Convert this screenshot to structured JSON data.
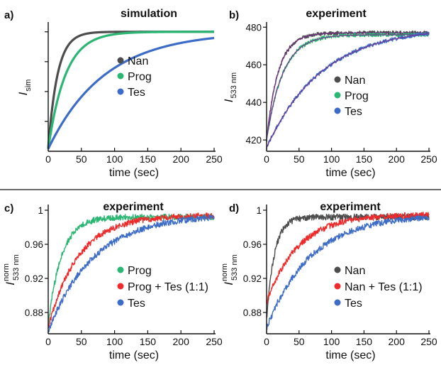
{
  "figure": {
    "colors": {
      "Nan": "#4d4d4d",
      "Prog": "#2bb673",
      "Tes": "#3c6cc6",
      "red": "#ee2a2a",
      "axis": "#111111",
      "fit": "#7a2a8e"
    }
  },
  "chart_data": [
    {
      "id": "a",
      "panel_label": "a)",
      "type": "line",
      "title": "simulation",
      "xlabel": "time (sec)",
      "ylabel": {
        "main": "I",
        "sub": "sim",
        "sup": ""
      },
      "xlim": [
        0,
        250
      ],
      "xticks": [
        0,
        50,
        100,
        150,
        200,
        250
      ],
      "ylim": [
        0,
        1.07
      ],
      "yticks": [
        0.25,
        0.5,
        0.75,
        1.0
      ],
      "ytick_labels_shown": false,
      "noise": 0,
      "legend": {
        "position": "center-right",
        "entries": [
          "Nan",
          "Prog",
          "Tes"
        ]
      },
      "series": [
        {
          "name": "Nan",
          "color_key": "Nan",
          "y0": 0.02,
          "yinf": 1.0,
          "tau": 14
        },
        {
          "name": "Prog",
          "color_key": "Prog",
          "y0": 0.02,
          "yinf": 1.0,
          "tau": 26
        },
        {
          "name": "Tes",
          "color_key": "Tes",
          "y0": 0.02,
          "yinf": 1.0,
          "tau": 85
        }
      ]
    },
    {
      "id": "b",
      "panel_label": "b)",
      "type": "line",
      "title": "experiment",
      "xlabel": "time (sec)",
      "ylabel": {
        "main": "I",
        "sub": "533 nm",
        "sup": ""
      },
      "xlim": [
        0,
        250
      ],
      "xticks": [
        0,
        50,
        100,
        150,
        200,
        250
      ],
      "ylim": [
        414,
        482
      ],
      "yticks": [
        420,
        440,
        460,
        480
      ],
      "ytick_labels_shown": true,
      "noise": 1.0,
      "fit_curves": true,
      "legend": {
        "position": "center-right",
        "entries": [
          "Nan",
          "Prog",
          "Tes"
        ]
      },
      "series": [
        {
          "name": "Nan",
          "color_key": "Nan",
          "y0": 420,
          "yinf": 477,
          "tau": 18
        },
        {
          "name": "Prog",
          "color_key": "Prog",
          "y0": 420,
          "yinf": 476,
          "tau": 25
        },
        {
          "name": "Tes",
          "color_key": "Tes",
          "y0": 416,
          "yinf": 480,
          "tau": 85
        }
      ]
    },
    {
      "id": "c",
      "panel_label": "c)",
      "type": "line",
      "title": "experiment",
      "xlabel": "time (sec)",
      "ylabel": {
        "main": "I",
        "sub": "533 nm",
        "sup": "norm"
      },
      "xlim": [
        0,
        250
      ],
      "xticks": [
        0,
        50,
        100,
        150,
        200,
        250
      ],
      "ylim": [
        0.855,
        1.005
      ],
      "yticks": [
        0.88,
        0.92,
        0.96,
        1.0
      ],
      "ytick_labels": [
        "0.88",
        "0.92",
        "0.96",
        "1"
      ],
      "ytick_labels_shown": true,
      "noise": 0.0035,
      "legend": {
        "position": "lower-right",
        "entries": [
          "Prog",
          "Prog + Tes (1:1)",
          "Tes"
        ]
      },
      "series": [
        {
          "name": "Prog",
          "color_key": "Prog",
          "y0": 0.866,
          "yinf": 0.992,
          "tau": 20
        },
        {
          "name": "Prog + Tes (1:1)",
          "color_key": "red",
          "y0": 0.862,
          "yinf": 0.994,
          "tau": 45
        },
        {
          "name": "Tes",
          "color_key": "Tes",
          "y0": 0.858,
          "yinf": 0.995,
          "tau": 68
        }
      ]
    },
    {
      "id": "d",
      "panel_label": "d)",
      "type": "line",
      "title": "experiment",
      "xlabel": "time (sec)",
      "ylabel": {
        "main": "I",
        "sub": "533 nm",
        "sup": "norm"
      },
      "xlim": [
        0,
        250
      ],
      "xticks": [
        0,
        50,
        100,
        150,
        200,
        250
      ],
      "ylim": [
        0.855,
        1.005
      ],
      "yticks": [
        0.88,
        0.92,
        0.96,
        1.0
      ],
      "ytick_labels": [
        "0.88",
        "0.92",
        "0.96",
        "1"
      ],
      "ytick_labels_shown": true,
      "noise": 0.0035,
      "legend": {
        "position": "lower-right",
        "entries": [
          "Nan",
          "Nan + Tes (1:1)",
          "Tes"
        ]
      },
      "series": [
        {
          "name": "Nan",
          "color_key": "Nan",
          "y0": 0.872,
          "yinf": 0.992,
          "tau": 12
        },
        {
          "name": "Nan + Tes (1:1)",
          "color_key": "red",
          "y0": 0.892,
          "yinf": 0.995,
          "tau": 48
        },
        {
          "name": "Tes",
          "color_key": "Tes",
          "y0": 0.862,
          "yinf": 0.995,
          "tau": 68
        }
      ]
    }
  ]
}
